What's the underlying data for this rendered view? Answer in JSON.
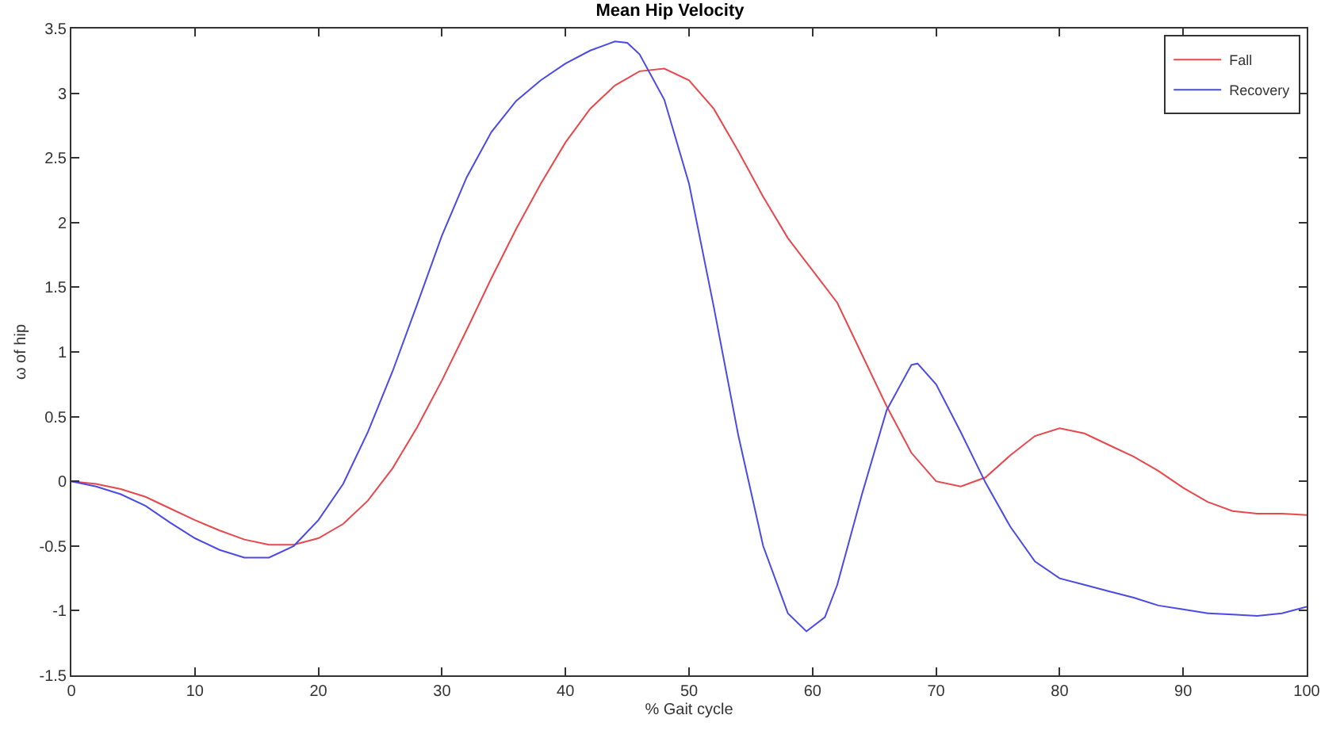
{
  "chart_data": {
    "type": "line",
    "title": "Mean Hip Velocity",
    "xlabel": "% Gait cycle",
    "ylabel": "ω of hip",
    "xlim": [
      0,
      100
    ],
    "xticks": [
      0,
      10,
      20,
      30,
      40,
      50,
      60,
      70,
      80,
      90,
      100
    ],
    "ylim": [
      -1.5,
      3.5
    ],
    "yticks": [
      -1.5,
      -1,
      -0.5,
      0,
      0.5,
      1,
      1.5,
      2,
      2.5,
      3,
      3.5
    ],
    "grid": false,
    "legend": "top right",
    "marker": "none",
    "line_style": "solid",
    "series": [
      {
        "name": "Fall",
        "color": "#e8474b",
        "x": [
          0,
          2,
          4,
          6,
          8,
          10,
          12,
          14,
          16,
          18,
          20,
          22,
          24,
          26,
          28,
          30,
          32,
          34,
          36,
          38,
          40,
          42,
          44,
          46,
          48,
          50,
          52,
          54,
          56,
          58,
          60,
          62,
          64,
          66,
          68,
          70,
          72,
          74,
          76,
          78,
          80,
          82,
          84,
          86,
          88,
          90,
          92,
          94,
          96,
          98,
          100
        ],
        "values": [
          0,
          -0.02,
          -0.06,
          -0.12,
          -0.21,
          -0.3,
          -0.38,
          -0.45,
          -0.49,
          -0.49,
          -0.44,
          -0.33,
          -0.15,
          0.1,
          0.42,
          0.78,
          1.17,
          1.57,
          1.95,
          2.3,
          2.62,
          2.88,
          3.06,
          3.17,
          3.19,
          3.1,
          2.88,
          2.55,
          2.2,
          1.88,
          1.63,
          1.38,
          0.98,
          0.58,
          0.22,
          0,
          -0.04,
          0.03,
          0.2,
          0.35,
          0.41,
          0.37,
          0.28,
          0.19,
          0.08,
          -0.05,
          -0.16,
          -0.23,
          -0.25,
          -0.25,
          -0.26
        ]
      },
      {
        "name": "Recovery",
        "color": "#4a4ae6",
        "x": [
          0,
          2,
          4,
          6,
          8,
          10,
          12,
          14,
          16,
          18,
          20,
          22,
          24,
          26,
          28,
          30,
          32,
          34,
          36,
          38,
          40,
          42,
          44,
          45,
          46,
          48,
          50,
          52,
          54,
          56,
          58,
          59.5,
          61,
          62,
          64,
          66,
          68,
          68.5,
          70,
          72,
          74,
          76,
          78,
          80,
          82,
          84,
          86,
          88,
          90,
          92,
          94,
          96,
          98,
          100
        ],
        "values": [
          0,
          -0.04,
          -0.1,
          -0.19,
          -0.32,
          -0.44,
          -0.53,
          -0.59,
          -0.59,
          -0.5,
          -0.3,
          -0.02,
          0.38,
          0.85,
          1.37,
          1.9,
          2.35,
          2.7,
          2.94,
          3.1,
          3.23,
          3.33,
          3.4,
          3.39,
          3.3,
          2.95,
          2.3,
          1.35,
          0.35,
          -0.5,
          -1.02,
          -1.16,
          -1.05,
          -0.8,
          -0.1,
          0.55,
          0.9,
          0.91,
          0.75,
          0.38,
          -0.01,
          -0.35,
          -0.62,
          -0.75,
          -0.8,
          -0.85,
          -0.9,
          -0.96,
          -0.99,
          -1.02,
          -1.03,
          -1.04,
          -1.02,
          -0.97
        ]
      }
    ]
  }
}
